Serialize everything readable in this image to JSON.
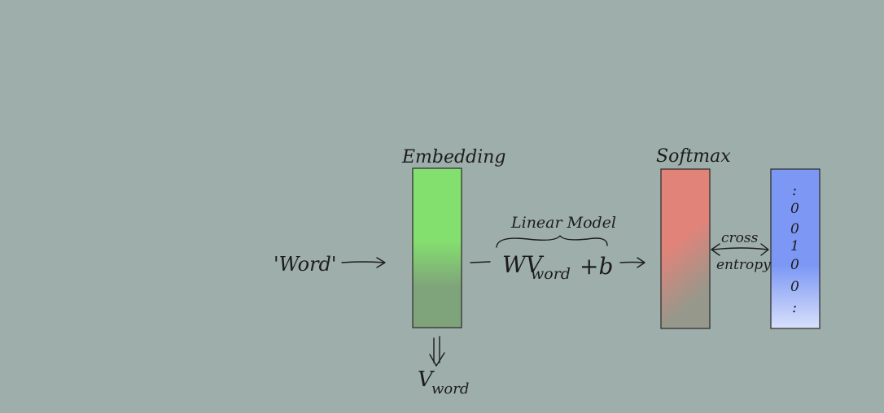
{
  "input_word": "'Word'",
  "embedding": {
    "label": "Embedding",
    "output_v": "V",
    "output_sub": "word"
  },
  "linear_model": {
    "label": "Linear Model",
    "formula_w": "WV",
    "formula_sub": "word",
    "formula_b": "+b"
  },
  "softmax": {
    "label": "Softmax"
  },
  "loss": {
    "line1": "cross",
    "line2": "entropy"
  },
  "one_hot": {
    "top_dots": ":",
    "values": [
      "0",
      "0",
      "1",
      "0",
      "0"
    ],
    "bottom_dots": ":"
  },
  "colors": {
    "background": "#9eaeaa",
    "embedding_top": "#84e06e",
    "embedding_bottom": "#7fa37a",
    "softmax_top": "#e2837a",
    "softmax_bottom": "#95988b",
    "onehot_top": "#7c97f4",
    "onehot_bottom": "#d8e0fb"
  }
}
